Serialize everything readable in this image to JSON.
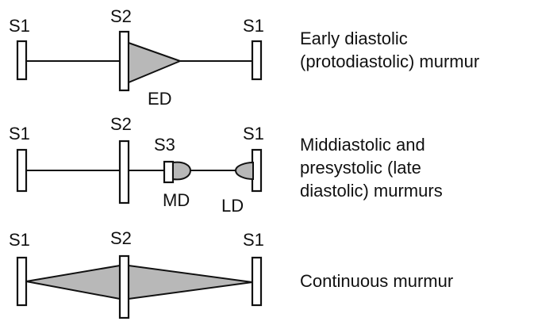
{
  "rows": [
    {
      "sounds": {
        "left": "S1",
        "mid": "S2",
        "right": "S1"
      },
      "markers": [
        "ED"
      ],
      "caption": [
        "Early diastolic",
        "(protodiastolic) murmur"
      ]
    },
    {
      "sounds": {
        "left": "S1",
        "mid": "S2",
        "right": "S1",
        "extra": "S3"
      },
      "markers": [
        "MD",
        "LD"
      ],
      "caption": [
        "Middiastolic and",
        "presystolic (late",
        "diastolic) murmurs"
      ]
    },
    {
      "sounds": {
        "left": "S1",
        "mid": "S2",
        "right": "S1"
      },
      "markers": [],
      "caption": [
        "Continuous murmur"
      ]
    }
  ],
  "colors": {
    "murmur_fill": "#b8b8b8",
    "line": "#111111",
    "background": "#ffffff"
  }
}
